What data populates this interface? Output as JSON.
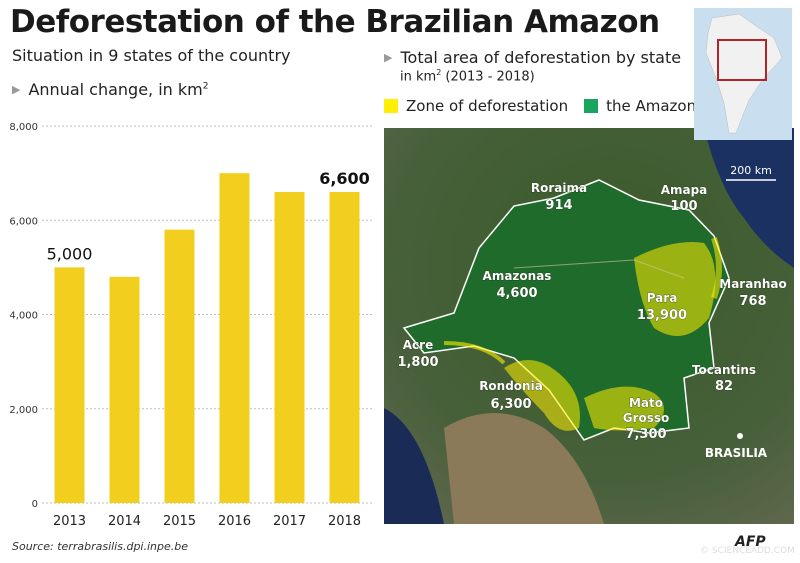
{
  "title": "Deforestation of the Brazilian Amazon",
  "subtitle": "Situation in 9 states of the country",
  "chart_data": {
    "type": "bar",
    "title": "Annual change, in km²",
    "categories": [
      "2013",
      "2014",
      "2015",
      "2016",
      "2017",
      "2018"
    ],
    "values": [
      5000,
      4800,
      5800,
      7000,
      6600,
      6600
    ],
    "labeled": [
      {
        "year": "2013",
        "label": "5,000"
      },
      {
        "year": "2018",
        "label": "6,600"
      }
    ],
    "ylim": [
      0,
      8000
    ],
    "yticks": [
      0,
      2000,
      4000,
      6000,
      8000
    ],
    "ytick_labels": [
      "0",
      "2,000",
      "4,000",
      "6,000",
      "8,000"
    ],
    "xlabel": "",
    "ylabel": "km²",
    "bar_color": "#f2cf1f"
  },
  "chart_heading": {
    "text": "Annual change, in km",
    "sup": "2"
  },
  "map": {
    "title": "Total area of deforestation by state",
    "unit_text": "in km",
    "unit_sup": "2",
    "unit_years": " (2013 - 2018)",
    "legend": [
      {
        "label": "Zone of deforestation",
        "color": "#ffef00"
      },
      {
        "label": "the Amazon",
        "color": "#19a560"
      }
    ],
    "scale_label": "200 km",
    "capital": "BRASILIA",
    "states": [
      {
        "name": "Roraima",
        "value": "914"
      },
      {
        "name": "Amapa",
        "value": "100"
      },
      {
        "name": "Amazonas",
        "value": "4,600"
      },
      {
        "name": "Para",
        "value": "13,900"
      },
      {
        "name": "Maranhao",
        "value": "768"
      },
      {
        "name": "Acre",
        "value": "1,800"
      },
      {
        "name": "Rondonia",
        "value": "6,300"
      },
      {
        "name": "Tocantins",
        "value": "82"
      },
      {
        "name": "Mato Grosso",
        "name_line1": "Mato",
        "name_line2": "Grosso",
        "value": "7,300"
      }
    ]
  },
  "source": "Source: terrabrasilis.dpi.inpe.be",
  "credit_mark": "©",
  "credit_site": "SCIENCEADD.COM",
  "afp": "AFP"
}
